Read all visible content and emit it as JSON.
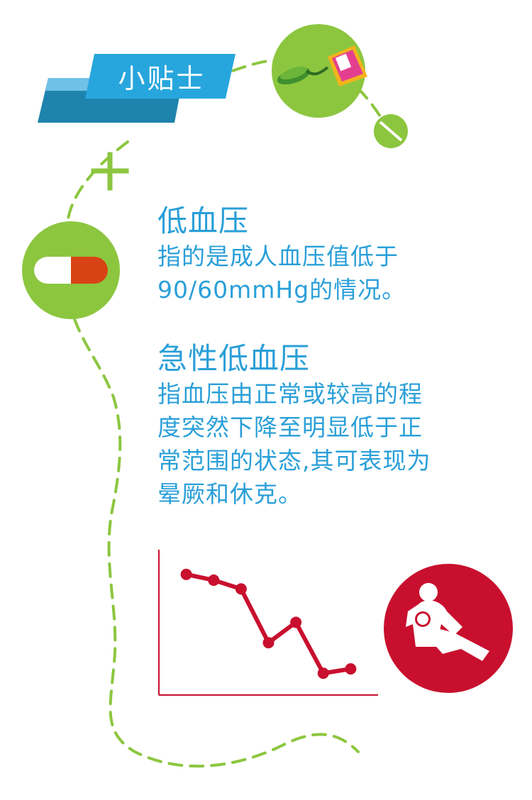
{
  "banner": {
    "title": "小贴士"
  },
  "sections": [
    {
      "heading": "低血压",
      "lines": [
        "指的是成人血压值低于",
        "90/60mmHg的情况。"
      ]
    },
    {
      "heading": "急性低血压",
      "lines": [
        "指血压由正常或较高的程",
        "度突然下降至明显低于正",
        "常范围的状态,其可表现为",
        "晕厥和休克。"
      ]
    }
  ],
  "chart_data": {
    "type": "line",
    "title": "",
    "xlabel": "",
    "ylabel": "",
    "x": [
      1,
      2,
      3,
      4,
      5,
      6,
      7
    ],
    "series": [
      {
        "values": [
          8.3,
          7.9,
          7.3,
          3.6,
          5.0,
          1.5,
          1.8
        ]
      }
    ],
    "xlim": [
      0,
      8
    ],
    "ylim": [
      0,
      10
    ]
  },
  "icons": [
    "blood-pressure-monitor-icon",
    "pill-icon",
    "fainting-person-icon"
  ],
  "colors": {
    "blue": "#2a9fd8",
    "green": "#8cc63f",
    "red": "#c8102e",
    "banner_dark": "#1e84ad",
    "banner_light": "#27a6dd"
  }
}
